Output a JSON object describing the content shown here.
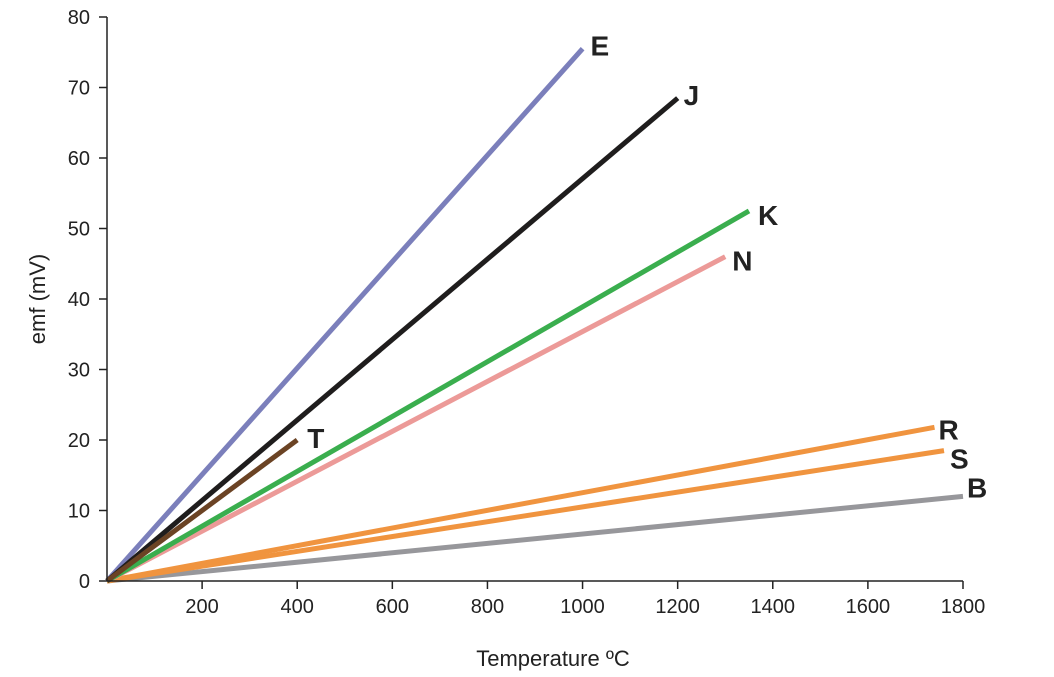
{
  "chart_data": {
    "type": "line",
    "title": "",
    "xlabel": "Temperature ºC",
    "ylabel": "emf (mV)",
    "xlim": [
      0,
      1800
    ],
    "ylim": [
      0,
      80
    ],
    "x_ticks": [
      200,
      400,
      600,
      800,
      1000,
      1200,
      1400,
      1600,
      1800
    ],
    "y_ticks": [
      0,
      10,
      20,
      30,
      40,
      50,
      60,
      70,
      80
    ],
    "grid": false,
    "legend": "inline labels at line ends",
    "series": [
      {
        "name": "E",
        "color": "#7b7fbb",
        "x": [
          0,
          1000
        ],
        "y": [
          0,
          75.5
        ]
      },
      {
        "name": "J",
        "color": "#1f1d1d",
        "x": [
          0,
          1200
        ],
        "y": [
          0,
          68.5
        ]
      },
      {
        "name": "K",
        "color": "#3aae4e",
        "x": [
          0,
          1350
        ],
        "y": [
          0,
          52.5
        ]
      },
      {
        "name": "N",
        "color": "#ec9a98",
        "x": [
          0,
          1300
        ],
        "y": [
          0,
          46.0
        ]
      },
      {
        "name": "T",
        "color": "#6b4324",
        "x": [
          0,
          400
        ],
        "y": [
          0,
          20.0
        ]
      },
      {
        "name": "R",
        "color": "#f0943f",
        "x": [
          0,
          1740
        ],
        "y": [
          0,
          21.8
        ]
      },
      {
        "name": "S",
        "color": "#f0943f",
        "x": [
          0,
          1760
        ],
        "y": [
          0,
          18.5
        ]
      },
      {
        "name": "B",
        "color": "#97979b",
        "x": [
          0,
          1800
        ],
        "y": [
          0,
          12.0
        ]
      }
    ]
  }
}
